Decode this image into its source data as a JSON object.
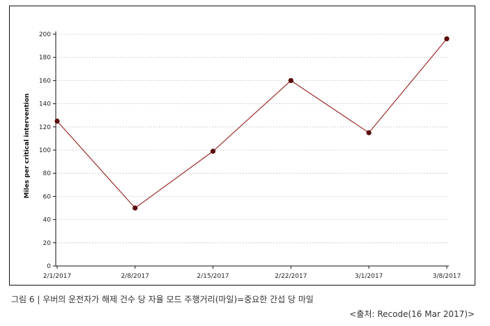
{
  "caption": "그림 6 | 우버의 운전자가 해제 건수 당 자율 모드 주행거리(마일)=중요한 간섭 당 마일",
  "source": "<출처: Recode(16 Mar 2017)>",
  "colors": {
    "line": "#9b2c2c",
    "marker": "#5a0a0a",
    "grid": "#c8c8c8",
    "axis": "#111111"
  },
  "chart_data": {
    "type": "line",
    "title": "",
    "xlabel": "",
    "ylabel": "Miles per critical intervention",
    "categories": [
      "2/1/2017",
      "2/8/2017",
      "2/15/2017",
      "2/22/2017",
      "3/1/2017",
      "3/8/2017"
    ],
    "series": [
      {
        "values": [
          125,
          50,
          99,
          160,
          115,
          196
        ]
      }
    ],
    "ylim": [
      0,
      200
    ],
    "yticks": [
      0,
      20,
      40,
      60,
      80,
      100,
      120,
      140,
      160,
      180,
      200
    ],
    "grid": "horizontal-dashed",
    "legend": "none"
  }
}
